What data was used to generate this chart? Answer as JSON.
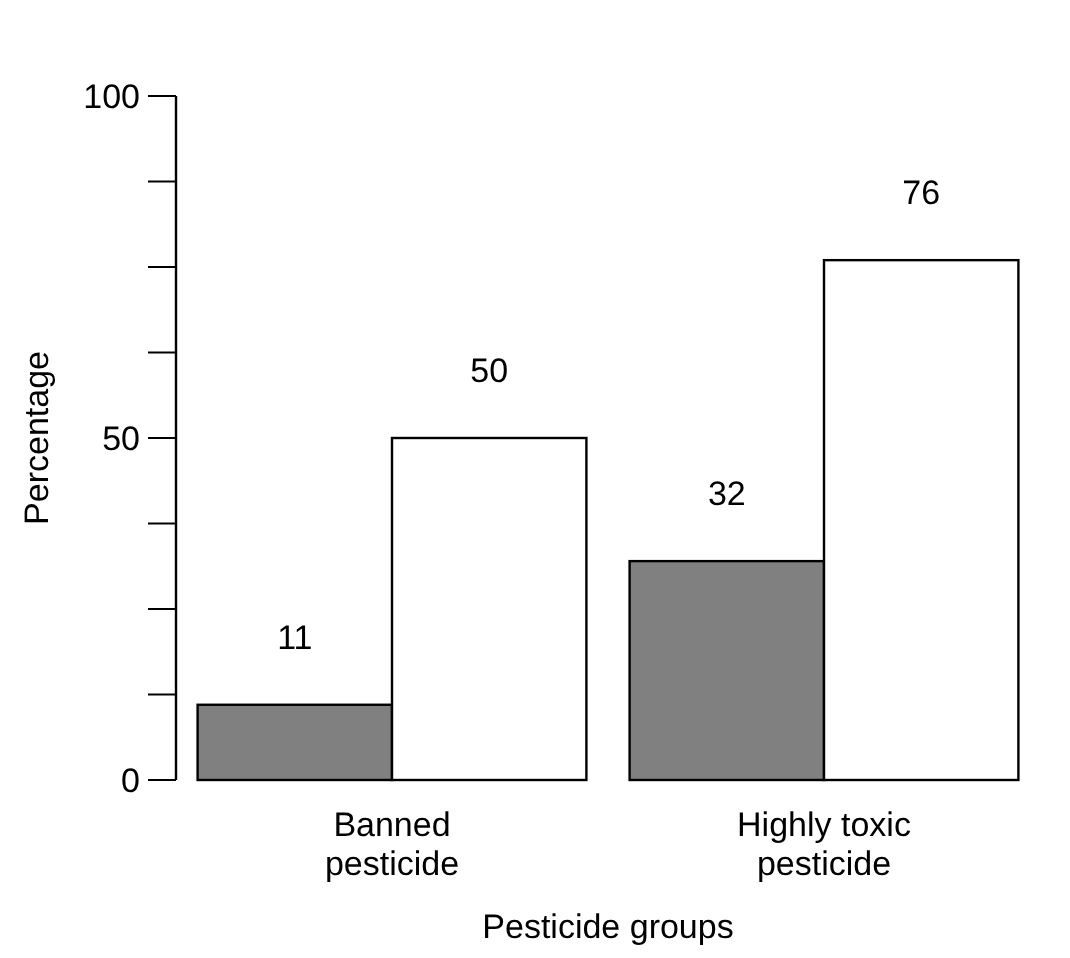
{
  "chart_data": {
    "type": "bar",
    "xlabel": "Pesticide groups",
    "ylabel": "Percentage",
    "categories": [
      "Banned\npesticide",
      "Highly toxic\npesticide"
    ],
    "series": [
      {
        "color": "#808080",
        "values": [
          11,
          32
        ]
      },
      {
        "color": "#ffffff",
        "values": [
          50,
          76
        ]
      }
    ],
    "ylim": [
      0,
      100
    ],
    "yticks": [
      0,
      {
        "value": 12.5,
        "label": null
      },
      {
        "value": 25,
        "label": null
      },
      {
        "value": 37.5,
        "label": null
      },
      50,
      {
        "value": 62.5,
        "label": null
      },
      {
        "value": 75,
        "label": null
      },
      {
        "value": 87.5,
        "label": null
      },
      100
    ],
    "data_labels": true,
    "grid": false
  }
}
